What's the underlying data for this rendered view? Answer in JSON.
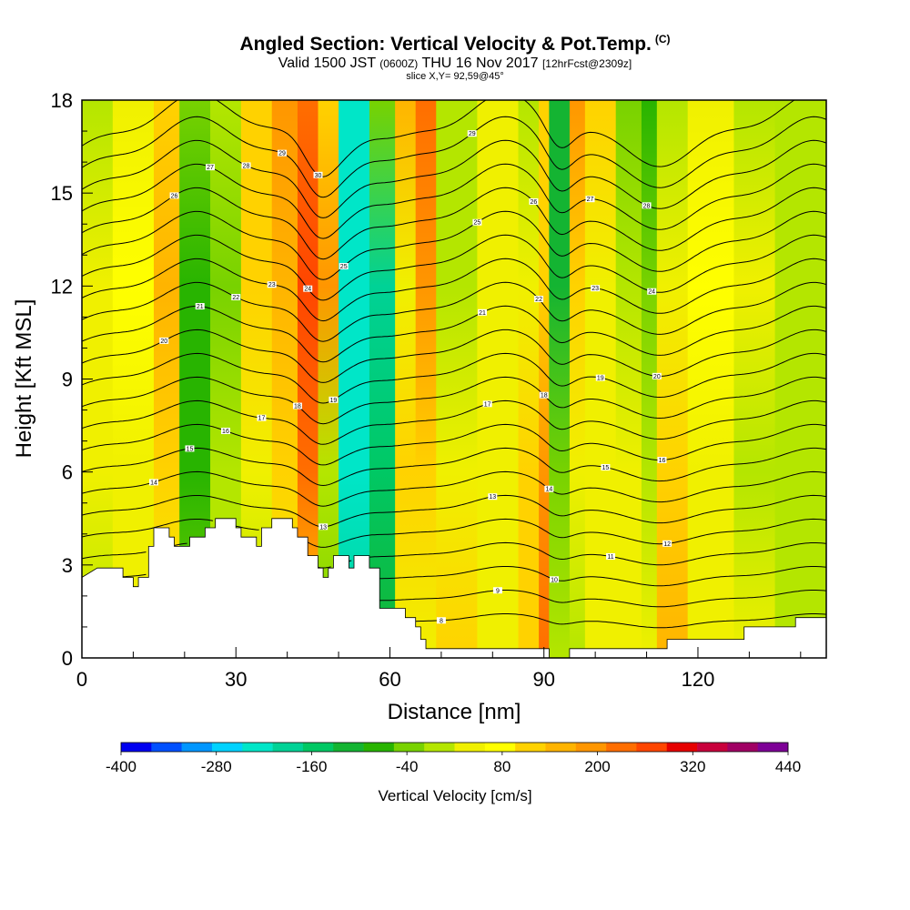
{
  "header": {
    "title": "Angled Section: Vertical Velocity & Pot.Temp.",
    "copyright": "(C)",
    "valid_main": "Valid 1500 JST",
    "valid_utc": "(0600Z)",
    "valid_date": "THU 16 Nov 2017",
    "forecast": "[12hrFcst@2309z]",
    "slice": "slice X,Y= 92,59@45°"
  },
  "chart_data": {
    "type": "heatmap",
    "xlabel": "Distance [nm]",
    "ylabel": "Height [Kft MSL]",
    "xlim": [
      0,
      145
    ],
    "ylim": [
      0,
      18
    ],
    "xticks": [
      0,
      30,
      60,
      90,
      120
    ],
    "yticks": [
      0,
      3,
      6,
      9,
      12,
      15,
      18
    ],
    "colorbar": {
      "title": "Vertical Velocity [cm/s]",
      "tick_labels": [
        "-400",
        "-280",
        "-160",
        "-40",
        "80",
        "200",
        "320",
        "440"
      ],
      "tick_values": [
        -400,
        -280,
        -160,
        -40,
        80,
        200,
        320,
        440
      ],
      "range": [
        -400,
        440
      ],
      "colors": [
        "#0000f0",
        "#0050ff",
        "#0096ff",
        "#00d2ff",
        "#00e6c8",
        "#00d296",
        "#00c864",
        "#14b432",
        "#28b400",
        "#78d200",
        "#b4e600",
        "#f0f000",
        "#ffff00",
        "#ffd200",
        "#ffb400",
        "#ff9600",
        "#ff6e00",
        "#ff4600",
        "#e60000",
        "#c8003c",
        "#a00064",
        "#7d0096"
      ]
    },
    "columns": [
      {
        "x": 0,
        "w": 6,
        "top": 18,
        "colors": [
          "#b4e600",
          "#f0f000",
          "#f0f000",
          "#b4e600"
        ]
      },
      {
        "x": 6,
        "w": 8,
        "top": 18,
        "colors": [
          "#f0f000",
          "#ffff00",
          "#f0f000",
          "#f0f000"
        ]
      },
      {
        "x": 14,
        "w": 5,
        "top": 18,
        "colors": [
          "#ffd200",
          "#ffb400",
          "#ffd200",
          "#f0f000"
        ]
      },
      {
        "x": 19,
        "w": 6,
        "top": 18,
        "colors": [
          "#78d200",
          "#28b400",
          "#28b400",
          "#78d200"
        ]
      },
      {
        "x": 25,
        "w": 6,
        "top": 18,
        "colors": [
          "#b4e600",
          "#78d200",
          "#b4e600",
          "#b4e600"
        ]
      },
      {
        "x": 31,
        "w": 6,
        "top": 18,
        "colors": [
          "#ffd200",
          "#ffd200",
          "#f0f000",
          "#b4e600"
        ]
      },
      {
        "x": 37,
        "w": 5,
        "top": 18,
        "colors": [
          "#ff9600",
          "#ffb400",
          "#ffd200",
          "#f0f000"
        ]
      },
      {
        "x": 42,
        "w": 4,
        "top": 18,
        "colors": [
          "#ff6e00",
          "#ff4600",
          "#ff6e00",
          "#ffd200"
        ]
      },
      {
        "x": 46,
        "w": 4,
        "top": 18,
        "colors": [
          "#ffd200",
          "#ff9600",
          "#b4e600",
          "#78d200"
        ]
      },
      {
        "x": 50,
        "w": 6,
        "top": 18,
        "colors": [
          "#00e6c8",
          "#00e6c8",
          "#00e6c8",
          "#00d296"
        ]
      },
      {
        "x": 56,
        "w": 5,
        "top": 18,
        "colors": [
          "#78d200",
          "#00d296",
          "#00c864",
          "#14b432"
        ]
      },
      {
        "x": 61,
        "w": 4,
        "top": 18,
        "colors": [
          "#ffb400",
          "#f0f000",
          "#ffd200",
          "#f0f000"
        ]
      },
      {
        "x": 65,
        "w": 4,
        "top": 18,
        "colors": [
          "#ff6e00",
          "#ff9600",
          "#ffd200",
          "#f0f000"
        ]
      },
      {
        "x": 69,
        "w": 8,
        "top": 18,
        "colors": [
          "#b4e600",
          "#b4e600",
          "#f0f000",
          "#ffd200"
        ]
      },
      {
        "x": 77,
        "w": 8,
        "top": 18,
        "colors": [
          "#f0f000",
          "#f0f000",
          "#f0f000",
          "#f0f000"
        ]
      },
      {
        "x": 85,
        "w": 4,
        "top": 18,
        "colors": [
          "#b4e600",
          "#f0f000",
          "#ffd200",
          "#ffd200"
        ]
      },
      {
        "x": 89,
        "w": 2,
        "top": 18,
        "colors": [
          "#ffd200",
          "#ffd200",
          "#ff9600",
          "#ff6e00"
        ]
      },
      {
        "x": 91,
        "w": 4,
        "top": 18,
        "colors": [
          "#14b432",
          "#14b432",
          "#78d200",
          "#b4e600"
        ]
      },
      {
        "x": 95,
        "w": 3,
        "top": 18,
        "colors": [
          "#ff9600",
          "#ffd200",
          "#f0f000",
          "#b4e600"
        ]
      },
      {
        "x": 98,
        "w": 6,
        "top": 18,
        "colors": [
          "#ffd200",
          "#f0f000",
          "#f0f000",
          "#f0f000"
        ]
      },
      {
        "x": 104,
        "w": 5,
        "top": 18,
        "colors": [
          "#78d200",
          "#b4e600",
          "#f0f000",
          "#f0f000"
        ]
      },
      {
        "x": 109,
        "w": 3,
        "top": 18,
        "colors": [
          "#28b400",
          "#78d200",
          "#b4e600",
          "#f0f000"
        ]
      },
      {
        "x": 112,
        "w": 6,
        "top": 18,
        "colors": [
          "#b4e600",
          "#f0f000",
          "#ffd200",
          "#ffb400"
        ]
      },
      {
        "x": 118,
        "w": 9,
        "top": 18,
        "colors": [
          "#f0f000",
          "#ffff00",
          "#f0f000",
          "#f0f000"
        ]
      },
      {
        "x": 127,
        "w": 8,
        "top": 18,
        "colors": [
          "#b4e600",
          "#f0f000",
          "#b4e600",
          "#f0f000"
        ]
      },
      {
        "x": 135,
        "w": 10,
        "top": 18,
        "colors": [
          "#b4e600",
          "#b4e600",
          "#b4e600",
          "#b4e600"
        ]
      }
    ],
    "terrain": [
      [
        0,
        2.6
      ],
      [
        3,
        2.9
      ],
      [
        8,
        2.9
      ],
      [
        8,
        2.6
      ],
      [
        10,
        2.6
      ],
      [
        10,
        2.3
      ],
      [
        11,
        2.3
      ],
      [
        11,
        2.6
      ],
      [
        13,
        2.6
      ],
      [
        13,
        3.6
      ],
      [
        14,
        3.6
      ],
      [
        14,
        4.2
      ],
      [
        17,
        4.2
      ],
      [
        17,
        3.9
      ],
      [
        18,
        3.9
      ],
      [
        18,
        3.6
      ],
      [
        21,
        3.6
      ],
      [
        21,
        3.9
      ],
      [
        24,
        3.9
      ],
      [
        24,
        4.2
      ],
      [
        26,
        4.2
      ],
      [
        26,
        4.5
      ],
      [
        30,
        4.5
      ],
      [
        30,
        4.2
      ],
      [
        31,
        4.2
      ],
      [
        31,
        3.9
      ],
      [
        34,
        3.9
      ],
      [
        34,
        3.6
      ],
      [
        35,
        3.6
      ],
      [
        35,
        4.2
      ],
      [
        37,
        4.2
      ],
      [
        37,
        4.5
      ],
      [
        41,
        4.5
      ],
      [
        41,
        4.2
      ],
      [
        42,
        4.2
      ],
      [
        42,
        3.9
      ],
      [
        44,
        3.9
      ],
      [
        44,
        3.3
      ],
      [
        46,
        3.3
      ],
      [
        46,
        2.9
      ],
      [
        47,
        2.9
      ],
      [
        47,
        2.6
      ],
      [
        48,
        2.6
      ],
      [
        48,
        2.9
      ],
      [
        49,
        2.9
      ],
      [
        49,
        3.3
      ],
      [
        52,
        3.3
      ],
      [
        52,
        2.9
      ],
      [
        53,
        2.9
      ],
      [
        53,
        3.3
      ],
      [
        56,
        3.3
      ],
      [
        56,
        2.9
      ],
      [
        58,
        2.9
      ],
      [
        58,
        1.6
      ],
      [
        63,
        1.6
      ],
      [
        63,
        1.3
      ],
      [
        65,
        1.3
      ],
      [
        65,
        1.0
      ],
      [
        66,
        1.0
      ],
      [
        66,
        0.6
      ],
      [
        67,
        0.6
      ],
      [
        67,
        0.3
      ],
      [
        91,
        0.3
      ],
      [
        91,
        0.0
      ],
      [
        95,
        0.0
      ],
      [
        95,
        0.3
      ],
      [
        114,
        0.3
      ],
      [
        114,
        0.6
      ],
      [
        129,
        0.6
      ],
      [
        129,
        1.0
      ],
      [
        139,
        1.0
      ],
      [
        139,
        1.3
      ],
      [
        145,
        1.3
      ]
    ],
    "theta_contours": {
      "count": 23,
      "base_height": 1.2,
      "spacing": 0.72,
      "labels": [
        "8",
        "9",
        "10",
        "11",
        "12",
        "13",
        "14",
        "15",
        "16",
        "17",
        "18",
        "19",
        "20",
        "21",
        "22",
        "23",
        "24",
        "25",
        "26",
        "27",
        "28",
        "29",
        "30"
      ]
    }
  }
}
